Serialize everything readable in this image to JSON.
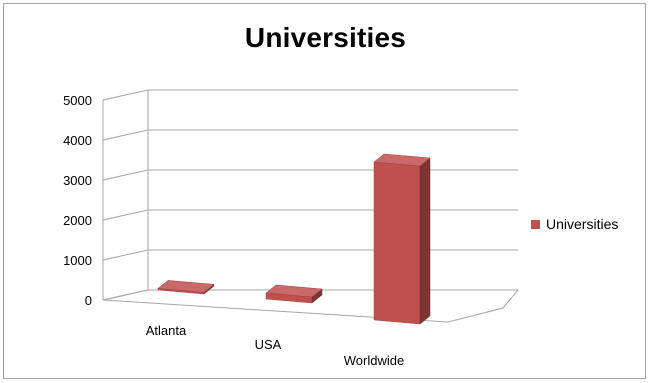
{
  "chart_data": {
    "type": "bar",
    "style": "3d-column",
    "title": "Universities",
    "xlabel": "",
    "ylabel": "",
    "categories": [
      "Atlanta",
      "USA",
      "Worldwide"
    ],
    "series": [
      {
        "name": "Universities",
        "values": [
          40,
          150,
          3950
        ],
        "color": "#c0504d"
      }
    ],
    "ylim": [
      0,
      5000
    ],
    "yticks": [
      0,
      1000,
      2000,
      3000,
      4000,
      5000
    ],
    "grid": true,
    "legend": "right"
  }
}
